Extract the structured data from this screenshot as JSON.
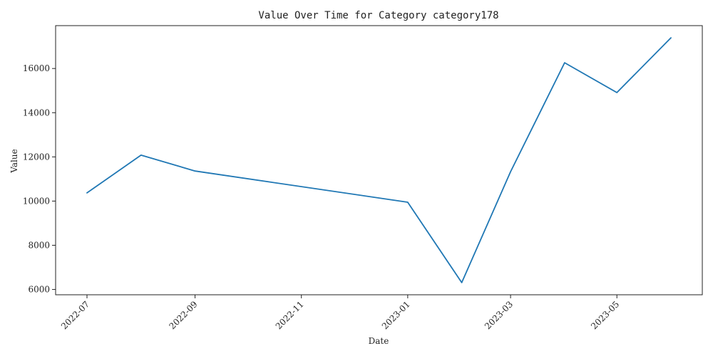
{
  "chart_data": {
    "type": "line",
    "title": "Value Over Time for Category category178",
    "xlabel": "Date",
    "ylabel": "Value",
    "x": [
      "2022-07-01",
      "2022-08-01",
      "2022-09-01",
      "2023-01-01",
      "2023-02-01",
      "2023-03-01",
      "2023-04-01",
      "2023-05-01",
      "2023-06-01"
    ],
    "series": [
      {
        "values": [
          10370,
          12080,
          11360,
          9950,
          6310,
          11330,
          16260,
          14910,
          17390
        ]
      }
    ],
    "xlim": [
      "2022-06-13",
      "2023-06-19"
    ],
    "ylim": [
      5760,
      17940
    ],
    "x_ticks": [
      {
        "date": "2022-07-01",
        "label": "2022-07"
      },
      {
        "date": "2022-09-01",
        "label": "2022-09"
      },
      {
        "date": "2022-11-01",
        "label": "2022-11"
      },
      {
        "date": "2023-01-01",
        "label": "2023-01"
      },
      {
        "date": "2023-03-01",
        "label": "2023-03"
      },
      {
        "date": "2023-05-01",
        "label": "2023-05"
      }
    ],
    "y_ticks": [
      6000,
      8000,
      10000,
      12000,
      14000,
      16000
    ],
    "grid": false,
    "line_color": "#1f77b4"
  }
}
